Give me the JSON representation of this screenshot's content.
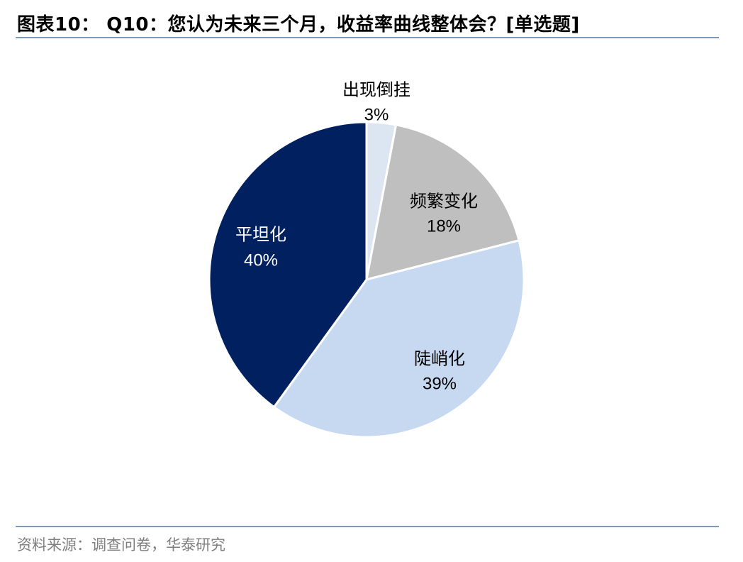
{
  "title": "图表10： Q10：您认为未来三个月，收益率曲线整体会？[单选题]",
  "source": "资料来源：调查问卷，华泰研究",
  "chart_data": {
    "type": "pie",
    "title": "",
    "start_angle_deg": 0,
    "direction": "clockwise",
    "slices": [
      {
        "label": "出现倒挂",
        "value": 3,
        "value_label": "3%",
        "color": "#dce6f2",
        "text_color": "#000000"
      },
      {
        "label": "频繁变化",
        "value": 18,
        "value_label": "18%",
        "color": "#bfbfbf",
        "text_color": "#000000"
      },
      {
        "label": "陡峭化",
        "value": 39,
        "value_label": "39%",
        "color": "#c6d9f1",
        "text_color": "#000000"
      },
      {
        "label": "平坦化",
        "value": 40,
        "value_label": "40%",
        "color": "#002060",
        "text_color": "#ffffff"
      }
    ]
  }
}
